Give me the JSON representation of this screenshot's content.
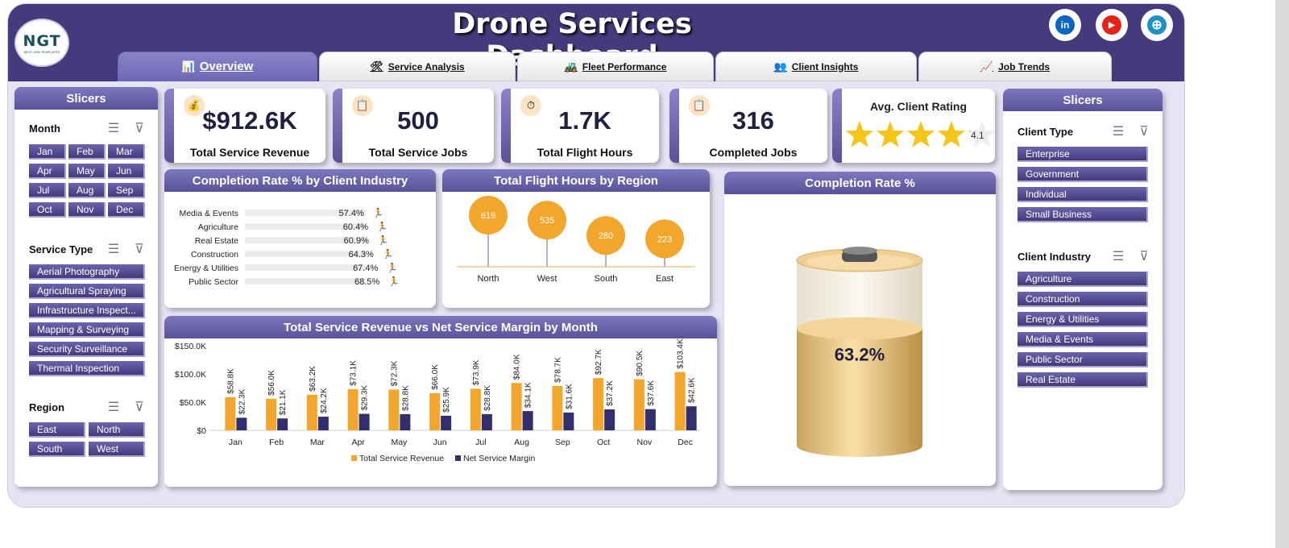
{
  "header": {
    "title": "Drone Services Dashboard",
    "logo_text": "NGT",
    "logo_sub": "NEXT GEN TEMPLATES",
    "social": [
      {
        "name": "linkedin-icon",
        "glyph": "in",
        "color": "#0a66c2"
      },
      {
        "name": "youtube-icon",
        "glyph": "▶",
        "color": "#e62117"
      },
      {
        "name": "globe-icon",
        "glyph": "⊕",
        "color": "#1e90c8"
      }
    ]
  },
  "tabs": [
    {
      "label": "Overview",
      "icon": "📊",
      "active": true
    },
    {
      "label": "Service Analysis",
      "icon": "🛠"
    },
    {
      "label": "Fleet Performance",
      "icon": "🚜"
    },
    {
      "label": "Client Insights",
      "icon": "👥"
    },
    {
      "label": "Job Trends",
      "icon": "📈"
    }
  ],
  "left_slicers": {
    "title": "Slicers",
    "month": {
      "label": "Month",
      "items": [
        "Jan",
        "Feb",
        "Mar",
        "Apr",
        "May",
        "Jun",
        "Jul",
        "Aug",
        "Sep",
        "Oct",
        "Nov",
        "Dec"
      ]
    },
    "service_type": {
      "label": "Service Type",
      "items": [
        "Aerial Photography",
        "Agricultural Spraying",
        "Infrastructure Inspect...",
        "Mapping & Surveying",
        "Security Surveillance",
        "Thermal Inspection"
      ]
    },
    "region": {
      "label": "Region",
      "items": [
        "East",
        "North",
        "South",
        "West"
      ]
    }
  },
  "right_slicers": {
    "title": "Slicers",
    "client_type": {
      "label": "Client Type",
      "items": [
        "Enterprise",
        "Government",
        "Individual",
        "Small Business"
      ]
    },
    "client_industry": {
      "label": "Client Industry",
      "items": [
        "Agriculture",
        "Construction",
        "Energy & Utilities",
        "Media & Events",
        "Public Sector",
        "Real Estate"
      ]
    }
  },
  "kpis": [
    {
      "value": "$912.6K",
      "label": "Total Service Revenue",
      "icon": "💰"
    },
    {
      "value": "500",
      "label": "Total Service Jobs",
      "icon": "📋"
    },
    {
      "value": "1.7K",
      "label": "Total Flight Hours",
      "icon": "⏱"
    },
    {
      "value": "316",
      "label": "Completed Jobs",
      "icon": "📋"
    }
  ],
  "rating": {
    "label": "Avg. Client Rating",
    "value": "4.1",
    "score": 4.1,
    "max": 5,
    "star_color": "#f5c518"
  },
  "completion_chart_title": "Completion Rate % by Client Industry",
  "flight_chart_title": "Total Flight Hours by Region",
  "gauge": {
    "title": "Completion Rate %",
    "value_label": "63.2%",
    "fraction": 0.632
  },
  "revenue_chart_title": "Total Service Revenue vs Net Service Margin by Month",
  "chart_data": [
    {
      "type": "bar",
      "title": "Completion Rate % by Client Industry",
      "categories": [
        "Media & Events",
        "Agriculture",
        "Real Estate",
        "Construction",
        "Energy & Utilities",
        "Public Sector"
      ],
      "values": [
        57.4,
        60.4,
        60.9,
        64.3,
        67.4,
        68.5
      ],
      "labels": [
        "57.4%",
        "60.4%",
        "60.9%",
        "64.3%",
        "67.4%",
        "68.5%"
      ]
    },
    {
      "type": "scatter",
      "title": "Total Flight Hours by Region",
      "categories": [
        "North",
        "West",
        "South",
        "East"
      ],
      "values": [
        619,
        535,
        280,
        223
      ],
      "color": "#f2a62b"
    },
    {
      "type": "bar",
      "title": "Total Service Revenue vs Net Service Margin by Month",
      "categories": [
        "Jan",
        "Feb",
        "Mar",
        "Apr",
        "May",
        "Jun",
        "Jul",
        "Aug",
        "Sep",
        "Oct",
        "Nov",
        "Dec"
      ],
      "series": [
        {
          "name": "Total Service Revenue",
          "color": "#f2a62b",
          "values": [
            58.8,
            56.0,
            63.2,
            73.1,
            72.3,
            66.0,
            73.9,
            84.0,
            78.7,
            92.7,
            90.5,
            103.4
          ],
          "labels": [
            "$58.8K",
            "$56.0K",
            "$63.2K",
            "$73.1K",
            "$72.3K",
            "$66.0K",
            "$73.9K",
            "$84.0K",
            "$78.7K",
            "$92.7K",
            "$90.5K",
            "$103.4K"
          ]
        },
        {
          "name": "Net Service Margin",
          "color": "#332f6e",
          "values": [
            22.3,
            21.1,
            24.2,
            29.3,
            28.8,
            25.9,
            28.8,
            34.1,
            31.6,
            37.2,
            37.6,
            42.6
          ],
          "labels": [
            "$22.3K",
            "$21.1K",
            "$24.2K",
            "$29.3K",
            "$28.8K",
            "$25.9K",
            "$28.8K",
            "$34.1K",
            "$31.6K",
            "$37.2K",
            "$37.6K",
            "$42.6K"
          ]
        }
      ],
      "yticks": [
        "$150.0K",
        "$100.0K",
        "$50.0K",
        "$0"
      ],
      "ylim": [
        0,
        150
      ]
    }
  ]
}
